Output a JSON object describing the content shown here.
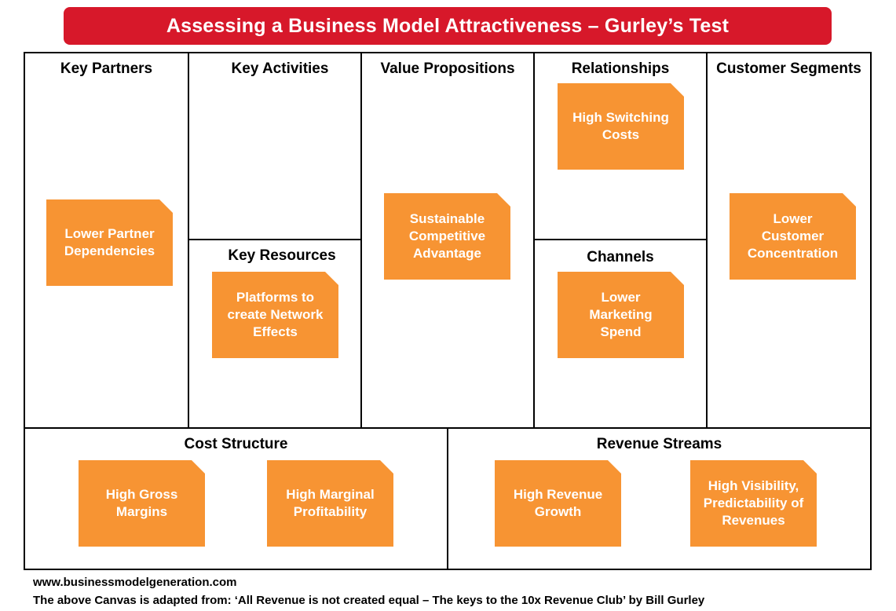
{
  "title": "Assessing a Business Model Attractiveness – Gurley’s Test",
  "sections": {
    "key_partners": "Key Partners",
    "key_activities": "Key Activities",
    "key_resources": "Key Resources",
    "value_propositions": "Value Propositions",
    "relationships": "Relationships",
    "channels": "Channels",
    "customer_segments": "Customer Segments",
    "cost_structure": "Cost Structure",
    "revenue_streams": "Revenue Streams"
  },
  "notes": {
    "partners": [
      "Lower Partner",
      "Dependencies"
    ],
    "resources": [
      "Platforms to",
      "create Network",
      "Effects"
    ],
    "value": [
      "Sustainable",
      "Competitive",
      "Advantage"
    ],
    "relationships": [
      "High Switching",
      "Costs"
    ],
    "channels": [
      "Lower",
      "Marketing",
      "Spend"
    ],
    "segments": [
      "Lower",
      "Customer",
      "Concentration"
    ],
    "gross_margins": [
      "High Gross",
      "Margins"
    ],
    "marginal": [
      "High Marginal",
      "Profitability"
    ],
    "revenue_growth": [
      "High Revenue",
      "Growth"
    ],
    "visibility": [
      "High Visibility,",
      "Predictability of",
      "Revenues"
    ]
  },
  "colors": {
    "title_bar": "#d7182a",
    "note": "#f79433"
  },
  "footer": {
    "url": "www.businessmodelgeneration.com",
    "credit": "The above Canvas is adapted from: ‘All Revenue is not created equal – The keys to the 10x Revenue Club’ by Bill Gurley"
  }
}
